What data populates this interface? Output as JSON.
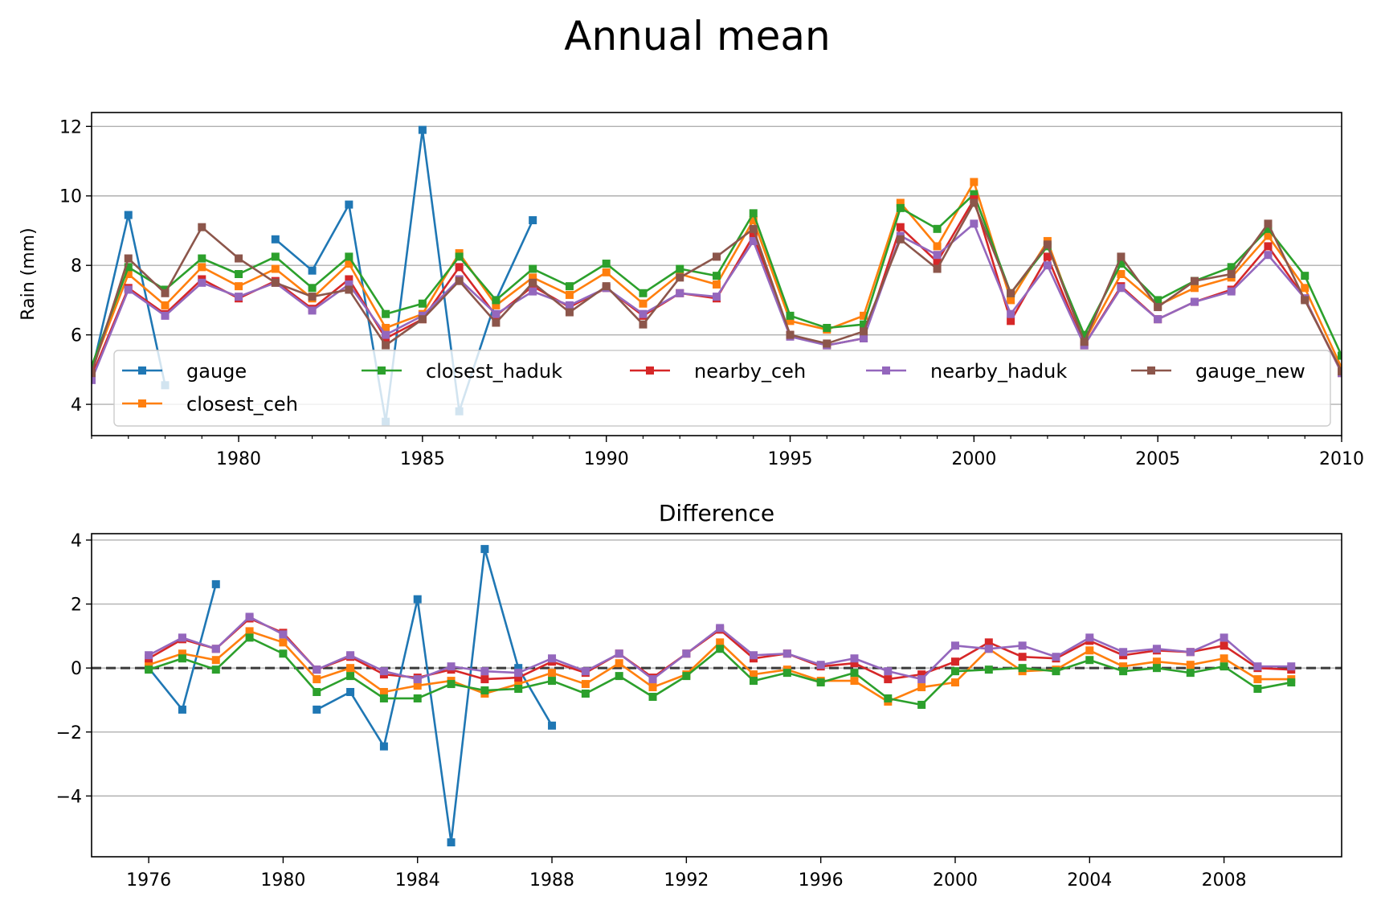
{
  "figure": {
    "title": "Annual mean"
  },
  "colors": {
    "gauge": "#1f77b4",
    "closest_ceh": "#ff7f0e",
    "closest_haduk": "#2ca02c",
    "nearby_ceh": "#d62728",
    "nearby_haduk": "#9467bd",
    "gauge_new": "#8c564b",
    "grid": "#b0b0b0",
    "zero_line": "#000000"
  },
  "chart_data": [
    {
      "type": "line",
      "title": "",
      "xlabel": "",
      "ylabel": "Rain (mm)",
      "xlim": [
        1976,
        2010
      ],
      "ylim": [
        3.1,
        12.4
      ],
      "xticks": [
        1980,
        1985,
        1990,
        1995,
        2000,
        2005,
        2010
      ],
      "yticks": [
        4,
        6,
        8,
        10,
        12
      ],
      "grid": "y",
      "legend": {
        "placement": "lower center",
        "columns": 5
      },
      "x": [
        1976,
        1977,
        1978,
        1979,
        1980,
        1981,
        1982,
        1983,
        1984,
        1985,
        1986,
        1987,
        1988,
        1989,
        1990,
        1991,
        1992,
        1993,
        1994,
        1995,
        1996,
        1997,
        1998,
        1999,
        2000,
        2001,
        2002,
        2003,
        2004,
        2005,
        2006,
        2007,
        2008,
        2009,
        2010
      ],
      "series": [
        {
          "name": "gauge",
          "key": "gauge",
          "values": [
            4.9,
            9.45,
            4.55,
            null,
            null,
            8.75,
            7.85,
            9.75,
            3.5,
            11.9,
            3.8,
            7.0,
            9.3,
            null,
            null,
            null,
            null,
            null,
            null,
            null,
            null,
            null,
            null,
            null,
            null,
            null,
            null,
            null,
            null,
            null,
            null,
            null,
            null,
            null,
            null
          ]
        },
        {
          "name": "closest_ceh",
          "key": "closest_ceh",
          "values": [
            5.0,
            7.75,
            6.85,
            7.95,
            7.4,
            7.9,
            7.05,
            8.05,
            6.2,
            6.6,
            8.35,
            6.85,
            7.65,
            7.15,
            7.8,
            6.9,
            7.75,
            7.45,
            9.3,
            6.4,
            6.15,
            6.55,
            9.8,
            8.55,
            10.4,
            7.0,
            8.7,
            5.8,
            7.75,
            6.85,
            7.35,
            7.65,
            8.85,
            7.35,
            5.05
          ]
        },
        {
          "name": "closest_haduk",
          "key": "closest_haduk",
          "values": [
            5.1,
            7.95,
            7.3,
            8.2,
            7.75,
            8.25,
            7.35,
            8.25,
            6.6,
            6.9,
            8.25,
            7.0,
            7.9,
            7.4,
            8.05,
            7.2,
            7.9,
            7.7,
            9.5,
            6.55,
            6.2,
            6.3,
            9.65,
            9.05,
            10.05,
            7.2,
            8.55,
            6.0,
            8.05,
            7.0,
            7.55,
            7.95,
            9.05,
            7.7,
            5.4
          ]
        },
        {
          "name": "nearby_ceh",
          "key": "nearby_ceh",
          "values": [
            4.8,
            7.35,
            6.6,
            7.6,
            7.05,
            7.55,
            6.75,
            7.6,
            5.9,
            6.45,
            7.95,
            6.55,
            7.4,
            6.8,
            7.35,
            6.55,
            7.2,
            7.05,
            8.85,
            6.0,
            5.7,
            5.9,
            9.1,
            8.1,
            9.9,
            6.4,
            8.25,
            5.7,
            7.4,
            6.45,
            6.95,
            7.3,
            8.55,
            7.05,
            4.9
          ]
        },
        {
          "name": "nearby_haduk",
          "key": "nearby_haduk",
          "values": [
            4.7,
            7.3,
            6.55,
            7.5,
            7.1,
            7.5,
            6.7,
            7.45,
            6.0,
            6.55,
            7.6,
            6.6,
            7.25,
            6.85,
            7.35,
            6.6,
            7.2,
            7.1,
            8.7,
            5.95,
            5.7,
            5.9,
            8.85,
            8.3,
            9.2,
            6.6,
            8.0,
            5.7,
            7.35,
            6.45,
            6.95,
            7.25,
            8.3,
            7.05,
            4.9
          ]
        },
        {
          "name": "gauge_new",
          "key": "gauge_new",
          "values": [
            4.9,
            8.2,
            7.2,
            9.1,
            8.2,
            7.5,
            7.1,
            7.3,
            5.7,
            6.45,
            7.55,
            6.35,
            7.5,
            6.65,
            7.4,
            6.3,
            7.65,
            8.25,
            9.05,
            6.0,
            5.75,
            6.1,
            8.75,
            7.9,
            9.8,
            7.2,
            8.6,
            5.8,
            8.25,
            6.8,
            7.55,
            7.75,
            9.2,
            7.0,
            4.95
          ]
        }
      ]
    },
    {
      "type": "line",
      "title": "Difference",
      "xlabel": "",
      "ylabel": "",
      "xlim": [
        1974.3,
        2011.5
      ],
      "ylim": [
        -5.9,
        4.2
      ],
      "xticks": [
        1976,
        1980,
        1984,
        1988,
        1992,
        1996,
        2000,
        2004,
        2008
      ],
      "yticks": [
        -4,
        -2,
        0,
        2,
        4
      ],
      "grid": "y",
      "reference_line": {
        "y": 0,
        "style": "dashed"
      },
      "x": [
        1976,
        1977,
        1978,
        1979,
        1980,
        1981,
        1982,
        1983,
        1984,
        1985,
        1986,
        1987,
        1988,
        1989,
        1990,
        1991,
        1992,
        1993,
        1994,
        1995,
        1996,
        1997,
        1998,
        1999,
        2000,
        2001,
        2002,
        2003,
        2004,
        2005,
        2006,
        2007,
        2008,
        2009,
        2010
      ],
      "series": [
        {
          "name": "gauge",
          "key": "gauge",
          "values": [
            0.0,
            -1.3,
            2.62,
            null,
            null,
            -1.3,
            -0.75,
            -2.45,
            2.15,
            -5.45,
            3.72,
            0.0,
            -1.8,
            null,
            null,
            null,
            null,
            null,
            null,
            null,
            null,
            null,
            null,
            null,
            null,
            null,
            null,
            null,
            null,
            null,
            null,
            null,
            null,
            null,
            null
          ]
        },
        {
          "name": "closest_ceh",
          "key": "closest_ceh",
          "values": [
            0.1,
            0.45,
            0.25,
            1.15,
            0.8,
            -0.35,
            0.0,
            -0.75,
            -0.55,
            -0.4,
            -0.8,
            -0.5,
            -0.15,
            -0.5,
            0.15,
            -0.6,
            -0.2,
            0.8,
            -0.2,
            -0.05,
            -0.4,
            -0.4,
            -1.05,
            -0.6,
            -0.45,
            0.6,
            -0.1,
            -0.05,
            0.55,
            0.05,
            0.2,
            0.1,
            0.3,
            -0.35,
            -0.35
          ]
        },
        {
          "name": "closest_haduk",
          "key": "closest_haduk",
          "values": [
            -0.05,
            0.3,
            -0.05,
            0.95,
            0.45,
            -0.75,
            -0.25,
            -0.95,
            -0.95,
            -0.5,
            -0.7,
            -0.65,
            -0.4,
            -0.8,
            -0.25,
            -0.9,
            -0.25,
            0.6,
            -0.4,
            -0.15,
            -0.45,
            -0.15,
            -0.95,
            -1.15,
            -0.1,
            -0.05,
            0.0,
            -0.1,
            0.25,
            -0.1,
            0.0,
            -0.15,
            0.05,
            -0.65,
            -0.45
          ]
        },
        {
          "name": "nearby_ceh",
          "key": "nearby_ceh",
          "values": [
            0.3,
            0.9,
            0.6,
            1.55,
            1.1,
            -0.05,
            0.35,
            -0.2,
            -0.3,
            -0.05,
            -0.35,
            -0.3,
            0.2,
            -0.15,
            0.45,
            -0.3,
            0.45,
            1.2,
            0.3,
            0.45,
            0.05,
            0.15,
            -0.35,
            -0.2,
            0.2,
            0.8,
            0.35,
            0.3,
            0.85,
            0.4,
            0.55,
            0.5,
            0.7,
            0.0,
            -0.05
          ]
        },
        {
          "name": "nearby_haduk",
          "key": "nearby_haduk",
          "values": [
            0.4,
            0.95,
            0.6,
            1.6,
            1.05,
            -0.05,
            0.4,
            -0.1,
            -0.35,
            0.05,
            -0.1,
            -0.15,
            0.3,
            -0.1,
            0.45,
            -0.35,
            0.45,
            1.25,
            0.4,
            0.45,
            0.1,
            0.3,
            -0.1,
            -0.35,
            0.7,
            0.6,
            0.7,
            0.35,
            0.95,
            0.5,
            0.6,
            0.5,
            0.95,
            0.05,
            0.05
          ]
        }
      ]
    }
  ]
}
